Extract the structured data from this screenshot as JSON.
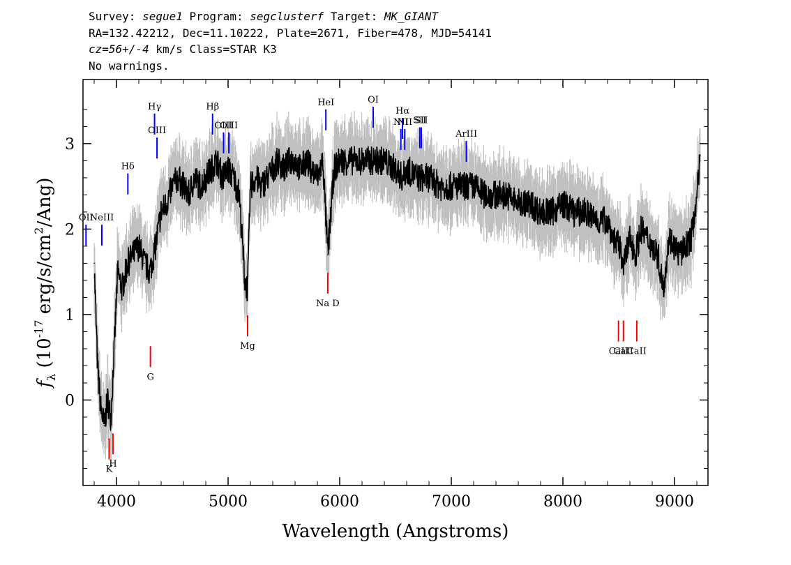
{
  "header": {
    "survey_label": "Survey:",
    "survey": "segue1",
    "program_label": "Program:",
    "program": "segclusterf",
    "target_label": "Target:",
    "target": "MK_GIANT",
    "line2": "RA=132.42212, Dec=11.10222, Plate=2671, Fiber=478, MJD=54141",
    "cz": "cz=56+/-4",
    "line3_rest": "km/s Class=STAR K3",
    "line4": "No warnings."
  },
  "colors": {
    "flux": "#000000",
    "error": "#c0c0c0",
    "emission": "#0000ff",
    "absorption": "#ff0000"
  },
  "chart_data": {
    "type": "line",
    "xlabel": "Wavelength (Angstroms)",
    "ylabel": "f_λ (10^-17 erg/s/cm^2/Ang)",
    "xlim": [
      3700,
      9300
    ],
    "ylim": [
      -1.0,
      3.75
    ],
    "xticks": [
      4000,
      5000,
      6000,
      7000,
      8000,
      9000
    ],
    "yticks": [
      0,
      1,
      2,
      3
    ],
    "series": [
      {
        "role": "flux",
        "x": [
          3800,
          3830,
          3860,
          3890,
          3920,
          3950,
          3980,
          4010,
          4050,
          4100,
          4150,
          4200,
          4250,
          4300,
          4350,
          4400,
          4450,
          4500,
          4550,
          4600,
          4650,
          4700,
          4750,
          4800,
          4850,
          4900,
          4950,
          5000,
          5050,
          5100,
          5150,
          5175,
          5200,
          5250,
          5300,
          5350,
          5400,
          5450,
          5500,
          5550,
          5600,
          5650,
          5700,
          5750,
          5800,
          5850,
          5893,
          5950,
          6000,
          6100,
          6200,
          6300,
          6400,
          6500,
          6563,
          6600,
          6700,
          6800,
          6900,
          7000,
          7100,
          7200,
          7300,
          7400,
          7500,
          7600,
          7700,
          7800,
          7900,
          8000,
          8100,
          8200,
          8300,
          8400,
          8450,
          8500,
          8550,
          8600,
          8650,
          8700,
          8750,
          8800,
          8850,
          8900,
          8950,
          9000,
          9050,
          9100,
          9150,
          9200,
          9230
        ],
        "y": [
          1.6,
          0.4,
          -0.1,
          -0.3,
          0.0,
          -0.2,
          0.6,
          1.5,
          1.3,
          1.6,
          1.7,
          1.8,
          1.6,
          1.5,
          1.8,
          2.2,
          2.3,
          2.5,
          2.6,
          2.5,
          2.4,
          2.6,
          2.5,
          2.6,
          2.7,
          2.8,
          2.6,
          2.7,
          2.6,
          2.4,
          1.4,
          1.3,
          2.5,
          2.6,
          2.5,
          2.6,
          2.7,
          2.8,
          2.7,
          2.8,
          2.8,
          2.7,
          2.8,
          2.7,
          2.6,
          2.8,
          1.7,
          2.7,
          2.8,
          2.8,
          2.8,
          2.8,
          2.8,
          2.7,
          2.6,
          2.7,
          2.6,
          2.6,
          2.5,
          2.5,
          2.5,
          2.5,
          2.4,
          2.4,
          2.4,
          2.3,
          2.3,
          2.2,
          2.2,
          2.3,
          2.2,
          2.2,
          2.1,
          2.1,
          1.9,
          1.8,
          1.6,
          1.9,
          1.7,
          2.0,
          1.9,
          1.8,
          1.7,
          1.3,
          1.9,
          1.8,
          1.7,
          1.8,
          1.9,
          2.4,
          2.8
        ]
      }
    ],
    "lines": [
      {
        "name": "OII",
        "wavelength": 3727,
        "kind": "emission",
        "label_y": 2.1
      },
      {
        "name": "NeIII",
        "wavelength": 3869,
        "kind": "emission",
        "label_y": 2.1
      },
      {
        "name": "K",
        "wavelength": 3934,
        "kind": "absorption",
        "label_y": -0.76
      },
      {
        "name": "H",
        "wavelength": 3969,
        "kind": "absorption",
        "label_y": -0.7
      },
      {
        "name": "Hδ",
        "wavelength": 4102,
        "kind": "emission",
        "label_y": 2.7
      },
      {
        "name": "G",
        "wavelength": 4304,
        "kind": "absorption",
        "label_y": 0.32
      },
      {
        "name": "Hγ",
        "wavelength": 4341,
        "kind": "emission",
        "label_y": 3.4
      },
      {
        "name": "OIII",
        "wavelength": 4363,
        "kind": "emission",
        "label_y": 3.12
      },
      {
        "name": "Hβ",
        "wavelength": 4861,
        "kind": "emission",
        "label_y": 3.4
      },
      {
        "name": "OIII",
        "wavelength": 4959,
        "kind": "emission",
        "label_y": 3.18
      },
      {
        "name": "OIII",
        "wavelength": 5007,
        "kind": "emission",
        "label_y": 3.18
      },
      {
        "name": "Mg",
        "wavelength": 5175,
        "kind": "absorption",
        "label_y": 0.68
      },
      {
        "name": "HeI",
        "wavelength": 5876,
        "kind": "emission",
        "label_y": 3.45
      },
      {
        "name": "Na D",
        "wavelength": 5893,
        "kind": "absorption",
        "label_y": 1.18
      },
      {
        "name": "OI",
        "wavelength": 6300,
        "kind": "emission",
        "label_y": 3.48
      },
      {
        "name": "NII",
        "wavelength": 6548,
        "kind": "emission",
        "label_y": 3.22
      },
      {
        "name": "Hα",
        "wavelength": 6563,
        "kind": "emission",
        "label_y": 3.35
      },
      {
        "name": "NII",
        "wavelength": 6583,
        "kind": "emission",
        "label_y": 3.22
      },
      {
        "name": "SII",
        "wavelength": 6717,
        "kind": "emission",
        "label_y": 3.24
      },
      {
        "name": "SII",
        "wavelength": 6731,
        "kind": "emission",
        "label_y": 3.24
      },
      {
        "name": "ArIII",
        "wavelength": 7135,
        "kind": "emission",
        "label_y": 3.08
      },
      {
        "name": "CaII",
        "wavelength": 8498,
        "kind": "absorption",
        "label_y": 0.62
      },
      {
        "name": "CaII",
        "wavelength": 8542,
        "kind": "absorption",
        "label_y": 0.62
      },
      {
        "name": "CaII",
        "wavelength": 8662,
        "kind": "absorption",
        "label_y": 0.62
      }
    ]
  }
}
